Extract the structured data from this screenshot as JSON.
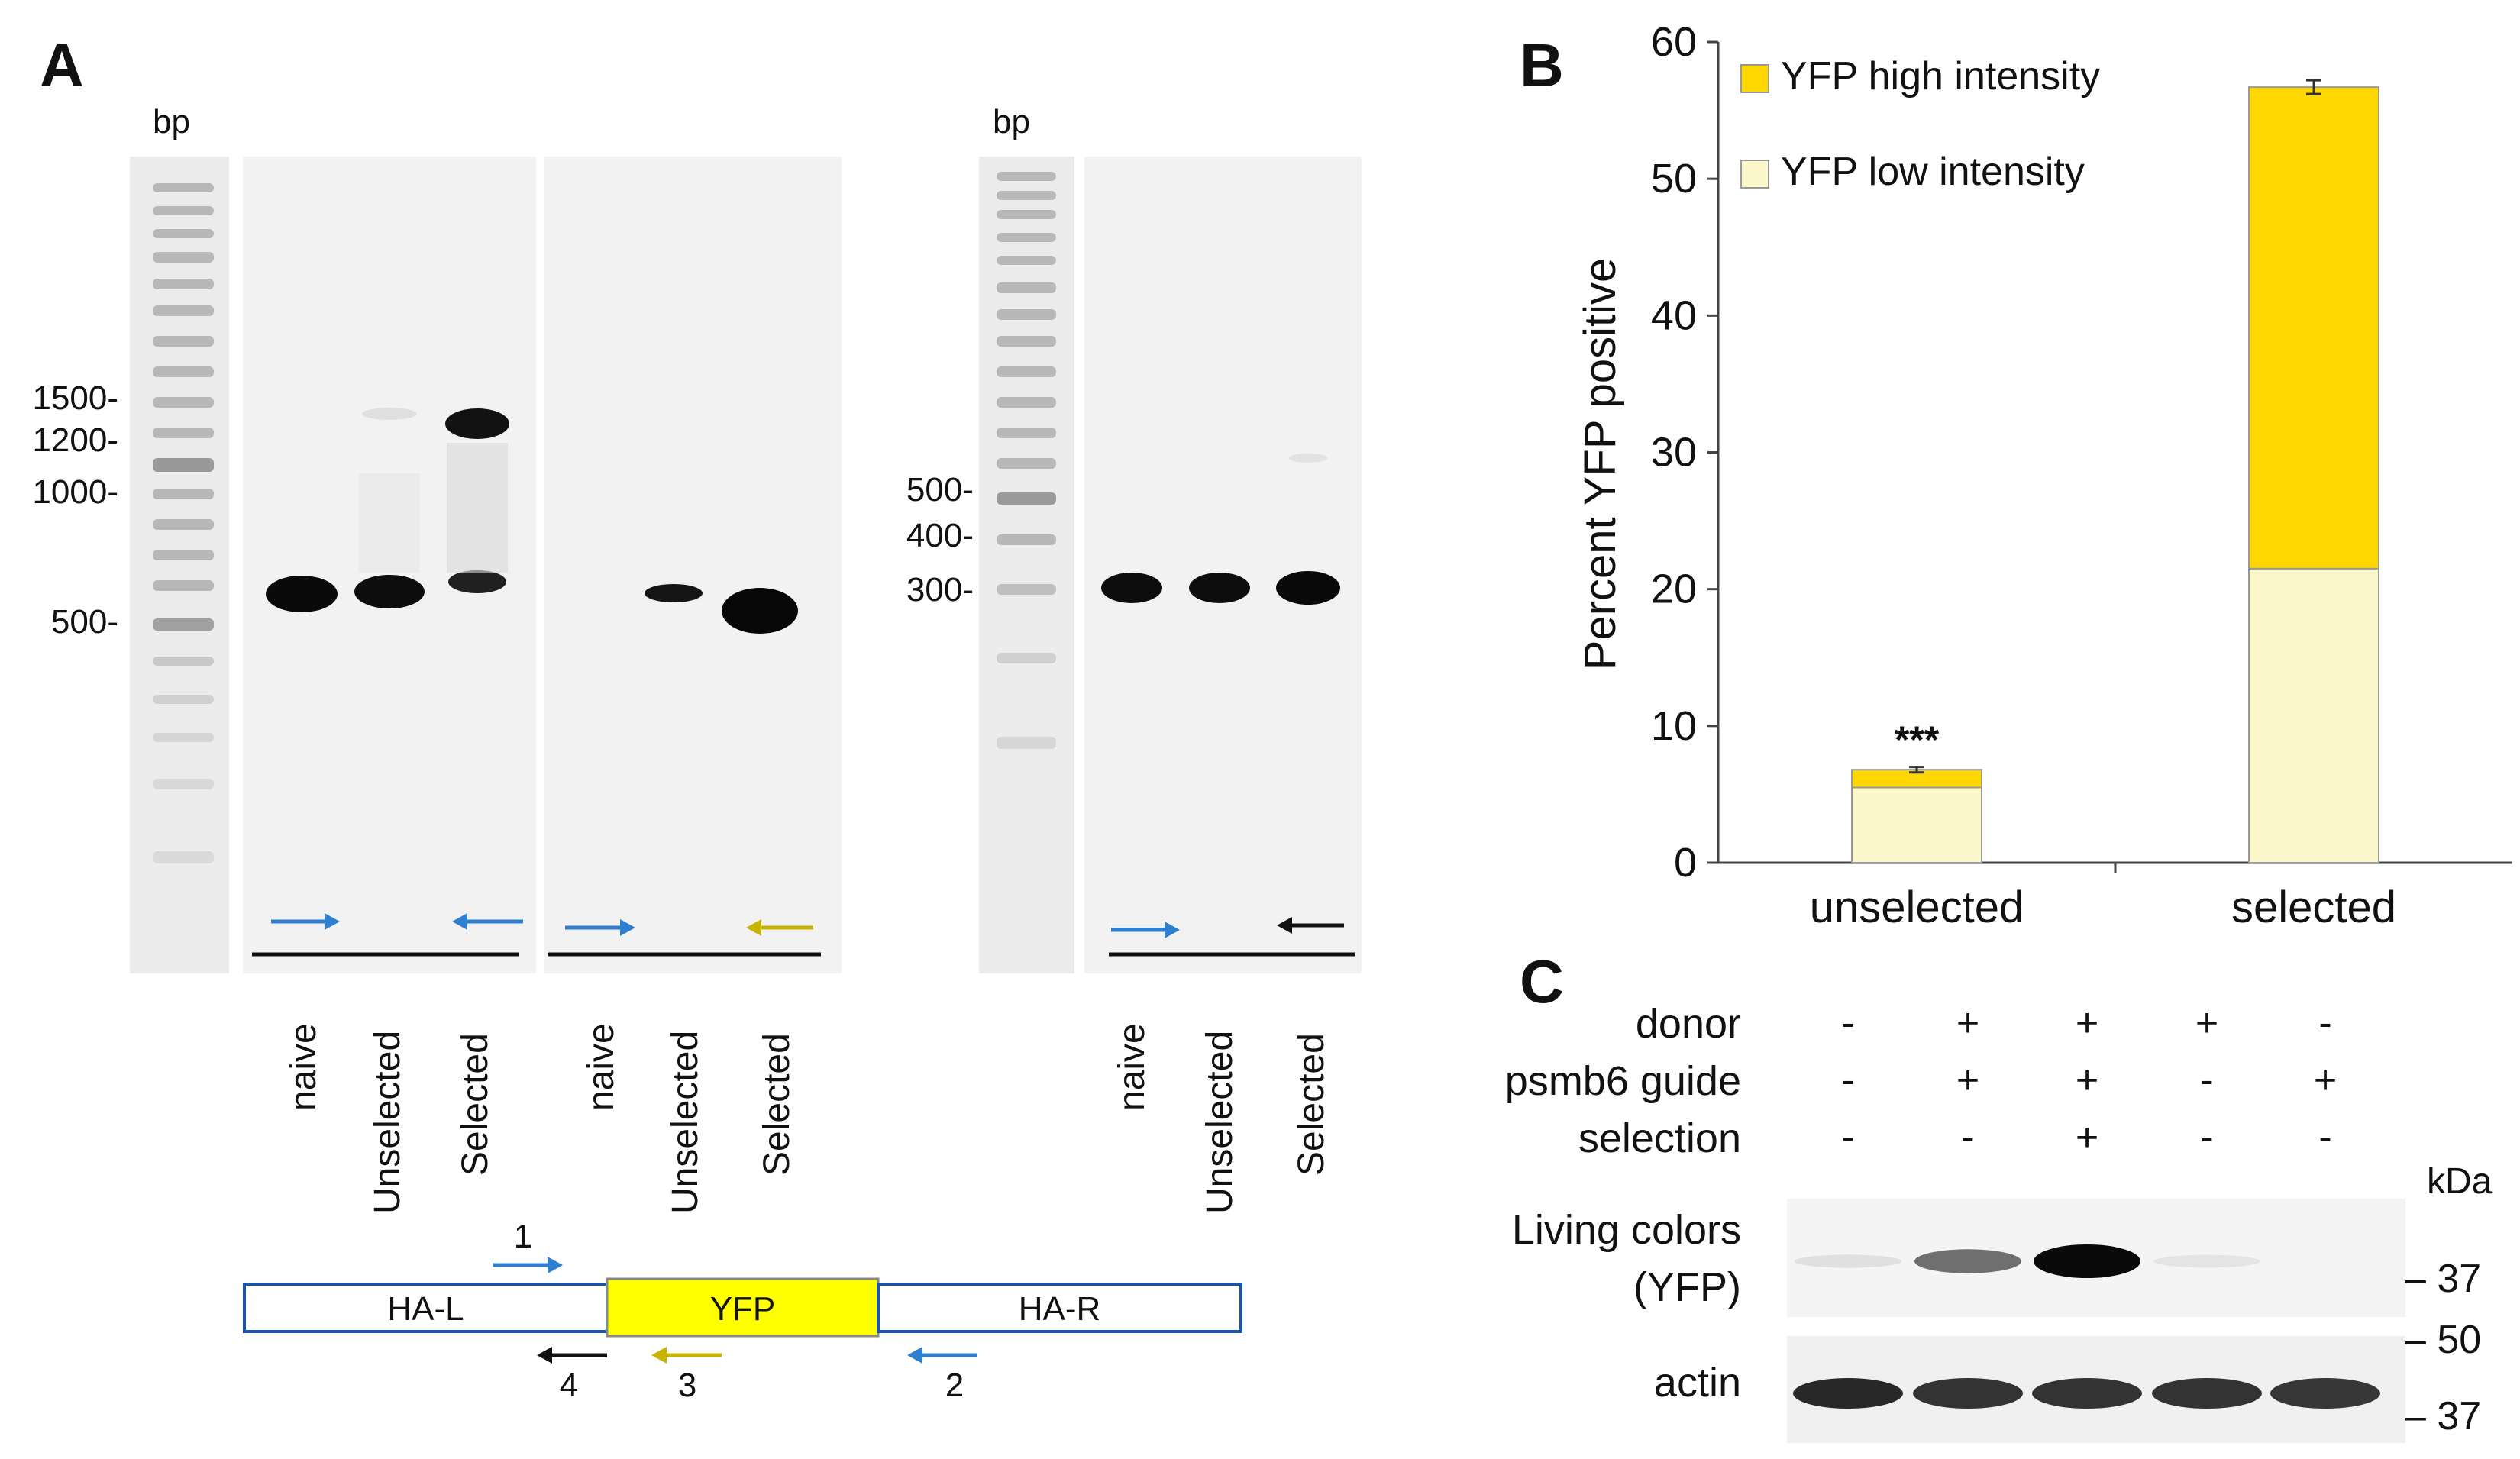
{
  "panel_a": {
    "letter": "A",
    "bp_label_1": "bp",
    "bp_label_2": "bp",
    "markers_left": [
      "1500-",
      "1200-",
      "1000-",
      "500-"
    ],
    "markers_right": [
      "500-",
      "400-",
      "300-"
    ],
    "gel1_lanes": [
      "naive",
      "Unselected",
      "Selected"
    ],
    "gel2_lanes": [
      "naive",
      "Unselected",
      "Selected"
    ],
    "gel3_lanes": [
      "naive",
      "Unselected",
      "Selected"
    ],
    "primer_colors": {
      "p1": "#2f7fd0",
      "p2": "#2f7fd0",
      "p3": "#c8b400",
      "p4": "#111111"
    },
    "construct": {
      "arms": [
        "HA-L",
        "YFP",
        "HA-R"
      ],
      "primer_numbers": [
        "1",
        "2",
        "3",
        "4"
      ],
      "yfp_color": "#ffff00",
      "arm_border": "#1a56a8"
    }
  },
  "panel_b": {
    "letter": "B",
    "chart_data": {
      "type": "bar",
      "stacked": true,
      "categories": [
        "unselected",
        "selected"
      ],
      "series": [
        {
          "name": "YFP low intensity",
          "values": [
            5.5,
            21.5
          ],
          "color": "#fdf8cc"
        },
        {
          "name": "YFP high intensity",
          "values": [
            1.3,
            35.2
          ],
          "color": "#ffd700"
        }
      ],
      "error_bars": [
        0.2,
        0.5
      ],
      "annotations": [
        "***"
      ],
      "ylabel": "Percent YFP positive",
      "xlabel": "",
      "ylim": [
        0,
        60
      ],
      "yticks": [
        0,
        10,
        20,
        30,
        40,
        50,
        60
      ],
      "legend_position": "top-left",
      "grid": false
    }
  },
  "panel_c": {
    "letter": "C",
    "conditions": [
      {
        "label": "donor",
        "values": [
          "-",
          "+",
          "+",
          "+",
          "-"
        ]
      },
      {
        "label": "psmb6 guide",
        "values": [
          "-",
          "+",
          "+",
          "-",
          "+"
        ]
      },
      {
        "label": "selection",
        "values": [
          "-",
          "-",
          "+",
          "-",
          "-"
        ]
      }
    ],
    "blot1_label_line1": "Living colors",
    "blot1_label_line2": "(YFP)",
    "blot2_label": "actin",
    "kda_label": "kDa",
    "kda_markers": [
      "– 37",
      "– 50",
      "– 37"
    ],
    "yfp_band_intensity": [
      0.05,
      0.55,
      1.0,
      0.03,
      0.0
    ],
    "actin_band_intensity": [
      0.95,
      0.9,
      0.9,
      0.9,
      0.88
    ]
  }
}
